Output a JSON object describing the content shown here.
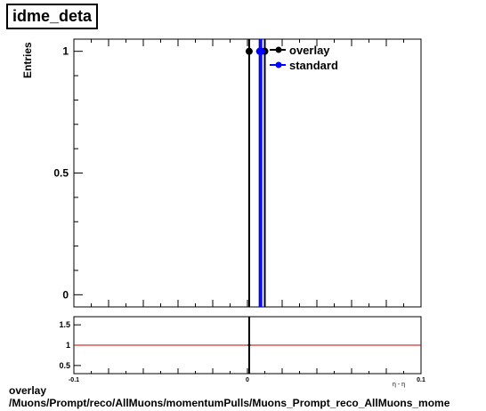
{
  "title": "idme_deta",
  "caption": {
    "line1": "overlay",
    "line2": "/Muons/Prompt/reco/AllMuons/momentumPulls/Muons_Prompt_reco_AllMuons_mome"
  },
  "colors": {
    "overlay": "#000000",
    "standard": "#0000ff",
    "ratio_line": "#cc0000"
  },
  "chart_data": [
    {
      "type": "line",
      "ylabel": "Entries",
      "xlim": [
        -0.1,
        0.1
      ],
      "ylim": [
        -0.05,
        1.05
      ],
      "yticks": [
        0,
        0.5,
        1
      ],
      "ytick_labels": [
        "0",
        "0.5",
        "1"
      ],
      "grid": false,
      "legend": "top-right",
      "series": [
        {
          "name": "overlay",
          "color": "#000000",
          "points": [
            [
              0.001,
              1
            ],
            [
              0.01,
              1
            ]
          ]
        },
        {
          "name": "standard",
          "color": "#0000ff",
          "points": [
            [
              0.007,
              1
            ],
            [
              0.008,
              1
            ]
          ]
        }
      ]
    },
    {
      "type": "line",
      "xlim": [
        -0.1,
        0.1
      ],
      "ylim": [
        0.3,
        1.7
      ],
      "yticks": [
        0.5,
        1,
        1.5
      ],
      "ytick_labels": [
        "0.5",
        "1",
        "1.5"
      ],
      "xticks": [
        -0.1,
        0,
        0.1
      ],
      "xtick_labels": [
        "-0.1",
        "0",
        "0.1"
      ],
      "xlabel": "η - η",
      "reference_line": 1,
      "points": [
        [
          0.001,
          1
        ]
      ]
    }
  ]
}
